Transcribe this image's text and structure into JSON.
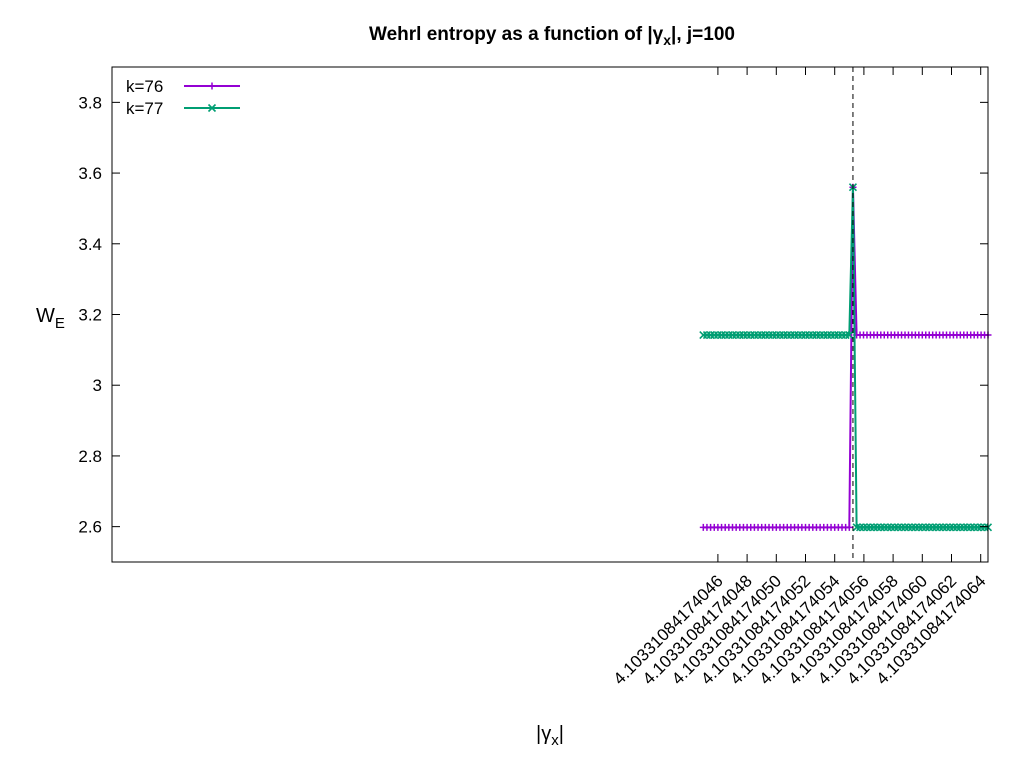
{
  "chart_data": {
    "type": "line",
    "title_main": "Wehrl entropy as a function of |γ",
    "title_sub": "x",
    "title_end": "|,  j=100",
    "xlabel_main": "|γ",
    "xlabel_sub": "x",
    "xlabel_end": "|",
    "ylabel_main": "W",
    "ylabel_sub": "E",
    "x_unit_label": "4.10331084174",
    "xlim": [
      4.5,
      64.5
    ],
    "ylim": [
      2.5,
      3.9
    ],
    "xticks": [
      46,
      48,
      50,
      52,
      54,
      56,
      58,
      60,
      62,
      64
    ],
    "xtick_labels": [
      "4.10331084174046",
      "4.10331084174048",
      "4.10331084174050",
      "4.10331084174052",
      "4.10331084174054",
      "4.10331084174056",
      "4.10331084174058",
      "4.10331084174060",
      "4.10331084174062",
      "4.10331084174064"
    ],
    "yticks": [
      2.6,
      2.8,
      3.0,
      3.2,
      3.4,
      3.6,
      3.8
    ],
    "ytick_labels": [
      "2.6",
      "2.8",
      "3",
      "3.2",
      "3.4",
      "3.6",
      "3.8"
    ],
    "vline_x": 55.25,
    "legend_position": "top-left",
    "grid": false,
    "series": [
      {
        "name": "k=76",
        "color": "#9400d3",
        "marker": "plus",
        "segments": [
          {
            "x_start": 45.0,
            "x_end": 55.0,
            "n": 41,
            "y": 2.598
          },
          {
            "x_start": 55.25,
            "x_end": 55.25,
            "n": 1,
            "y": 3.56
          },
          {
            "x_start": 55.5,
            "x_end": 64.5,
            "n": 39,
            "y": 3.142
          }
        ]
      },
      {
        "name": "k=77",
        "color": "#009e73",
        "marker": "cross",
        "segments": [
          {
            "x_start": 45.0,
            "x_end": 55.0,
            "n": 41,
            "y": 3.142
          },
          {
            "x_start": 55.25,
            "x_end": 55.25,
            "n": 1,
            "y": 3.56
          },
          {
            "x_start": 55.5,
            "x_end": 64.5,
            "n": 39,
            "y": 2.598
          }
        ]
      }
    ]
  }
}
